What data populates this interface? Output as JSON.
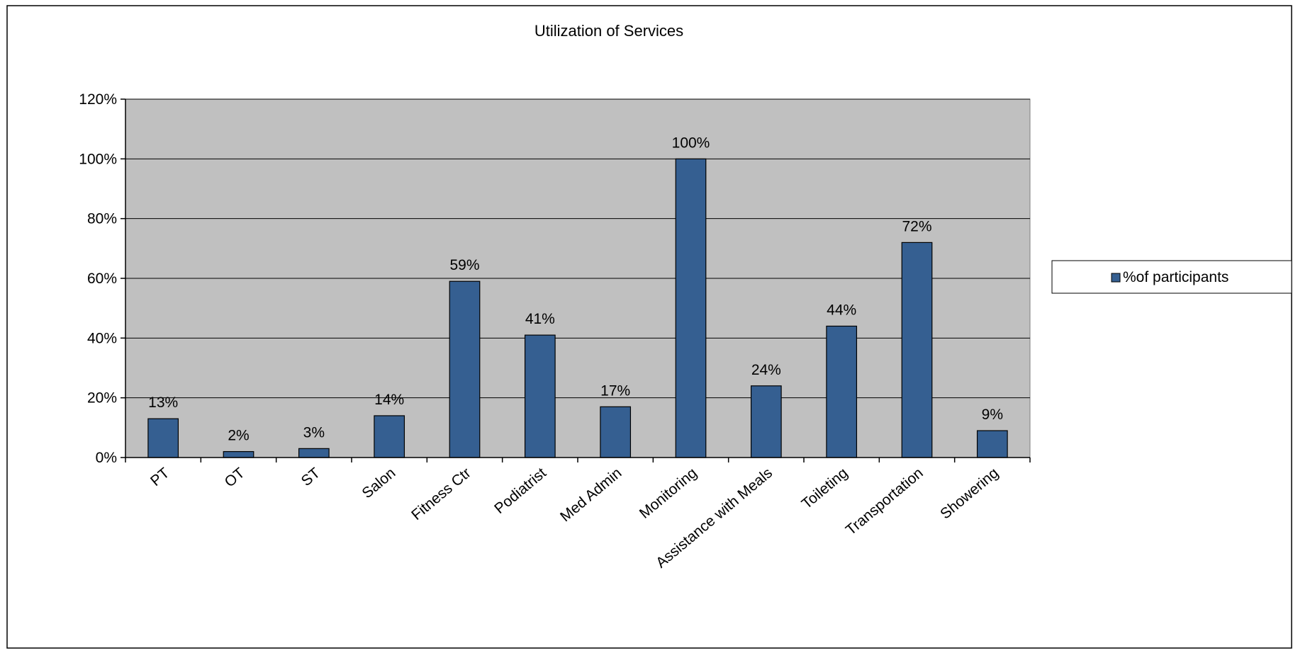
{
  "chart_data": {
    "type": "bar",
    "title": "Utilization  of Services",
    "categories": [
      "PT",
      "OT",
      "ST",
      "Salon",
      "Fitness Ctr",
      "Podiatrist",
      "Med Admin",
      "Monitoring",
      "Assistance with Meals",
      "Toileting",
      "Transportation",
      "Showering"
    ],
    "series": [
      {
        "name": "%of participants",
        "values": [
          13,
          2,
          3,
          14,
          59,
          41,
          17,
          100,
          24,
          44,
          72,
          9
        ],
        "data_labels": [
          "13%",
          "2%",
          "3%",
          "14%",
          "59%",
          "41%",
          "17%",
          "100%",
          "24%",
          "44%",
          "72%",
          "9%"
        ],
        "color": "#355F91"
      }
    ],
    "ylim": [
      0,
      120
    ],
    "yticks": [
      0,
      20,
      40,
      60,
      80,
      100,
      120
    ],
    "ytick_labels": [
      "0%",
      "20%",
      "40%",
      "60%",
      "80%",
      "100%",
      "120%"
    ],
    "grid": true,
    "plot_background": "#C0C0C0",
    "legend_position": "right"
  }
}
